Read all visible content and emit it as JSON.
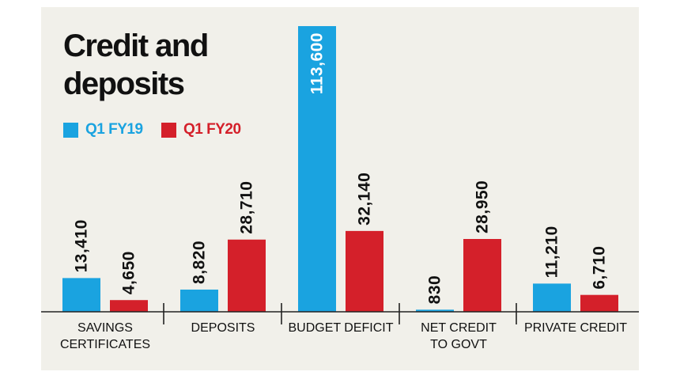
{
  "chart_data": {
    "type": "bar",
    "title": "Credit and deposits",
    "title_lines": [
      "Credit and",
      "deposits"
    ],
    "categories": [
      "SAVINGS CERTIFICATES",
      "DEPOSITS",
      "BUDGET DEFICIT",
      "NET CREDIT TO GOVT",
      "PRIVATE CREDIT"
    ],
    "category_lines": [
      [
        "SAVINGS",
        "CERTIFICATES"
      ],
      [
        "DEPOSITS"
      ],
      [
        "BUDGET DEFICIT"
      ],
      [
        "NET CREDIT",
        "TO GOVT"
      ],
      [
        "PRIVATE CREDIT"
      ]
    ],
    "series": [
      {
        "name": "Q1 FY19",
        "color": "#1aa3e0",
        "values": [
          13410,
          8820,
          113600,
          830,
          11210
        ],
        "labels": [
          "13,410",
          "8,820",
          "113,600",
          "830",
          "11,210"
        ]
      },
      {
        "name": "Q1 FY20",
        "color": "#d4202a",
        "values": [
          4650,
          28710,
          32140,
          28950,
          6710
        ],
        "labels": [
          "4,650",
          "28,710",
          "32,140",
          "28,950",
          "6,710"
        ]
      }
    ],
    "ylim": [
      0,
      113600
    ],
    "grid": false,
    "legend_position": "top-left",
    "xlabel": "",
    "ylabel": ""
  }
}
